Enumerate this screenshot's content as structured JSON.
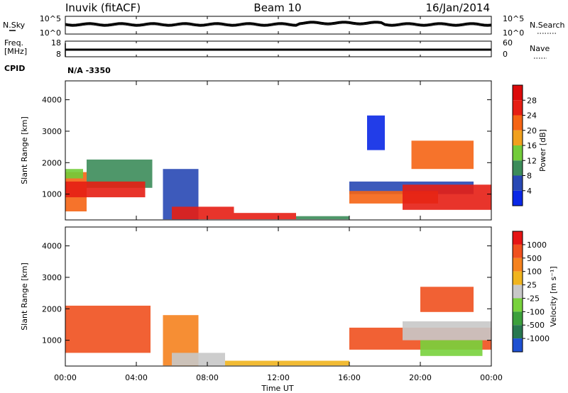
{
  "header": {
    "station": "Inuvik (fitACF)",
    "beam": "Beam 10",
    "date": "16/Jan/2014"
  },
  "noise_panel": {
    "left_label": "N.Sky",
    "right_label": "N.Search",
    "left_ticks": [
      "10^5",
      "10^0"
    ],
    "right_ticks": [
      "10^5",
      "10^0"
    ]
  },
  "freq_panel": {
    "left_label_1": "Freq.",
    "left_label_2": "[MHz]",
    "left_ticks": [
      "18",
      "8"
    ],
    "right_label": "Nave",
    "right_ticks": [
      "60",
      "0"
    ]
  },
  "cpid_panel": {
    "label": "CPID",
    "value": "N/A  -3350"
  },
  "x_axis": {
    "label": "Time UT",
    "ticks": [
      "00:00",
      "04:00",
      "08:00",
      "12:00",
      "16:00",
      "20:00",
      "00:00"
    ]
  },
  "chart_data": [
    {
      "type": "heatmap",
      "name": "power",
      "ylabel": "Slant Range [km]",
      "yticks": [
        "1000",
        "2000",
        "3000",
        "4000"
      ],
      "ylim": [
        180,
        4600
      ],
      "xlim_hours": [
        0,
        24
      ],
      "colorbar_label": "Power [dB]",
      "colorbar_ticks": [
        "4",
        "8",
        "12",
        "16",
        "20",
        "24",
        "28"
      ],
      "colors": [
        "#0a28e6",
        "#2848b4",
        "#3c8c5a",
        "#72cc3a",
        "#f0a01e",
        "#f56414",
        "#e61e14",
        "#dc0a0a"
      ],
      "regions": [
        {
          "t": [
            0.0,
            1.2
          ],
          "r": [
            450,
            1700
          ],
          "c": 5
        },
        {
          "t": [
            1.2,
            4.9
          ],
          "r": [
            1200,
            2100
          ],
          "c": 2
        },
        {
          "t": [
            0.0,
            1.0
          ],
          "r": [
            1500,
            1800
          ],
          "c": 3
        },
        {
          "t": [
            0.0,
            4.5
          ],
          "r": [
            900,
            1400
          ],
          "c": 6
        },
        {
          "t": [
            5.5,
            7.5
          ],
          "r": [
            200,
            1800
          ],
          "c": 1
        },
        {
          "t": [
            6.0,
            9.5
          ],
          "r": [
            200,
            600
          ],
          "c": 6
        },
        {
          "t": [
            9.5,
            13.0
          ],
          "r": [
            200,
            400
          ],
          "c": 6
        },
        {
          "t": [
            13.0,
            16.0
          ],
          "r": [
            200,
            300
          ],
          "c": 2
        },
        {
          "t": [
            16.0,
            23.0
          ],
          "r": [
            1000,
            1400
          ],
          "c": 1
        },
        {
          "t": [
            16.0,
            21.0
          ],
          "r": [
            700,
            1100
          ],
          "c": 5
        },
        {
          "t": [
            19.0,
            24.0
          ],
          "r": [
            500,
            1300
          ],
          "c": 6
        },
        {
          "t": [
            19.5,
            23.0
          ],
          "r": [
            1800,
            2700
          ],
          "c": 5
        },
        {
          "t": [
            17.0,
            18.0
          ],
          "r": [
            2400,
            3500
          ],
          "c": 0
        }
      ]
    },
    {
      "type": "heatmap",
      "name": "velocity",
      "ylabel": "Slant Range [km]",
      "yticks": [
        "1000",
        "2000",
        "3000",
        "4000"
      ],
      "ylim": [
        180,
        4600
      ],
      "xlim_hours": [
        0,
        24
      ],
      "colorbar_label": "Velocity [m s⁻¹]",
      "colorbar_ticks": [
        "1000",
        "500",
        "100",
        "25",
        "-25",
        "-100",
        "-500",
        "-1000"
      ],
      "colors": [
        "#1e50d2",
        "#287850",
        "#3ca03c",
        "#78d23c",
        "#c8c8c8",
        "#f0b41e",
        "#f5821e",
        "#f0501e",
        "#e61414"
      ],
      "regions": [
        {
          "t": [
            0.0,
            4.8
          ],
          "r": [
            600,
            2100
          ],
          "c": 7
        },
        {
          "t": [
            5.5,
            7.5
          ],
          "r": [
            200,
            1800
          ],
          "c": 6
        },
        {
          "t": [
            6.0,
            9.0
          ],
          "r": [
            200,
            600
          ],
          "c": 4
        },
        {
          "t": [
            9.0,
            16.0
          ],
          "r": [
            200,
            350
          ],
          "c": 5
        },
        {
          "t": [
            16.0,
            24.0
          ],
          "r": [
            700,
            1400
          ],
          "c": 7
        },
        {
          "t": [
            19.0,
            24.0
          ],
          "r": [
            1000,
            1600
          ],
          "c": 4
        },
        {
          "t": [
            20.0,
            23.0
          ],
          "r": [
            1900,
            2700
          ],
          "c": 7
        },
        {
          "t": [
            20.0,
            23.5
          ],
          "r": [
            500,
            1000
          ],
          "c": 3
        }
      ]
    }
  ]
}
